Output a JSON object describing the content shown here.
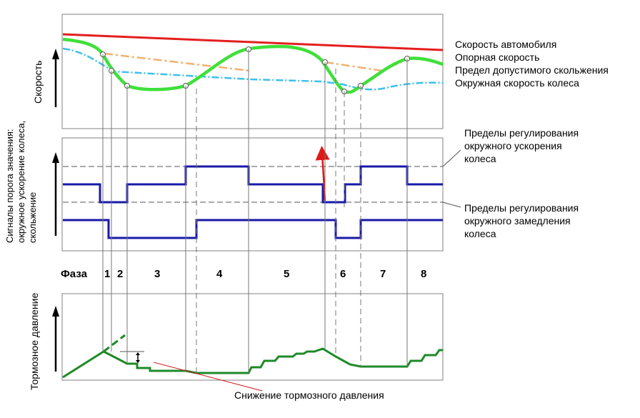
{
  "speed_panel": {
    "axis_label": "Скорость",
    "legend": {
      "vehicle_speed": "Скорость автомобиля",
      "reference_speed": "Опорная скорость",
      "slip_limit": "Предел допустимого скольжения",
      "wheel_speed": "Окружная скорость колеса"
    },
    "colors": {
      "vehicle_speed": "#e41e1e",
      "reference_speed": "#f0b070",
      "slip_limit": "#3ec0ea",
      "wheel_speed": "#3fe03a"
    }
  },
  "signal_panel": {
    "axis_label_lines": [
      "Сигналы порога значения:",
      "окружное ускорение колеса,",
      "скольжение"
    ],
    "annotation_accel": [
      "Пределы регулирования",
      "окружного ускорения",
      "колеса"
    ],
    "annotation_decel": [
      "Пределы регулирования",
      "окружного замедления",
      "колеса"
    ],
    "colors": {
      "signal": "#1a1aa8",
      "arrow": "#e01818"
    }
  },
  "phases": {
    "label": "Фаза",
    "numbers": [
      "1",
      "2",
      "3",
      "4",
      "5",
      "6",
      "7",
      "8"
    ]
  },
  "pressure_panel": {
    "axis_label": "Тормозное давление",
    "annotation": "Снижение тормозного давления",
    "colors": {
      "pressure": "#1e8a28",
      "annotation_line": "#d01818"
    }
  }
}
